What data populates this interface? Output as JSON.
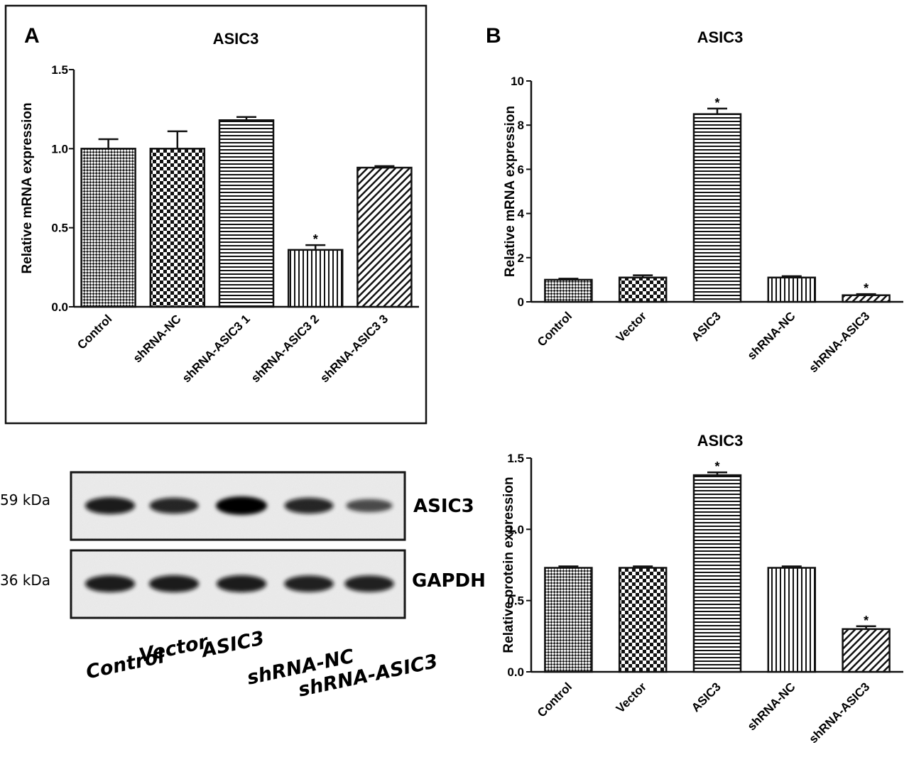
{
  "panel_labels": {
    "a": "A",
    "b": "B"
  },
  "chart_data": [
    {
      "type": "bar",
      "title": "ASIC3",
      "ylabel": "Relative mRNA expression",
      "xlabel": "",
      "categories": [
        "Control",
        "shRNA-NC",
        "shRNA-ASIC3 1",
        "shRNA-ASIC3 2",
        "shRNA-ASIC3 3"
      ],
      "values": [
        1.0,
        1.0,
        1.18,
        0.36,
        0.88
      ],
      "errors": [
        0.06,
        0.11,
        0.02,
        0.03,
        0.01
      ],
      "significance": [
        "",
        "",
        "",
        "*",
        ""
      ],
      "patterns": [
        "diamond",
        "checker",
        "hlines",
        "vlines",
        "diag"
      ],
      "ylim": [
        0,
        1.5
      ],
      "yticks": [
        0.0,
        0.5,
        1.0,
        1.5
      ],
      "ytick_labels": [
        "0.0",
        "0.5",
        "1.0",
        "1.5"
      ]
    },
    {
      "type": "bar",
      "title": "ASIC3",
      "ylabel": "Relative mRNA expression",
      "xlabel": "",
      "categories": [
        "Control",
        "Vector",
        "ASIC3",
        "shRNA-NC",
        "shRNA-ASIC3"
      ],
      "values": [
        1.0,
        1.1,
        8.5,
        1.1,
        0.3
      ],
      "errors": [
        0.05,
        0.1,
        0.25,
        0.06,
        0.05
      ],
      "significance": [
        "",
        "",
        "*",
        "",
        "*"
      ],
      "patterns": [
        "diamond",
        "checker",
        "hlines",
        "vlines",
        "diag"
      ],
      "ylim": [
        0,
        10
      ],
      "yticks": [
        0,
        2,
        4,
        6,
        8,
        10
      ],
      "ytick_labels": [
        "0",
        "2",
        "4",
        "6",
        "8",
        "10"
      ]
    },
    {
      "type": "bar",
      "title": "ASIC3",
      "ylabel": "Relative protein expression",
      "xlabel": "",
      "categories": [
        "Control",
        "Vector",
        "ASIC3",
        "shRNA-NC",
        "shRNA-ASIC3"
      ],
      "values": [
        0.73,
        0.73,
        1.38,
        0.73,
        0.3
      ],
      "errors": [
        0.01,
        0.01,
        0.02,
        0.01,
        0.02
      ],
      "significance": [
        "",
        "",
        "*",
        "",
        "*"
      ],
      "patterns": [
        "diamond",
        "checker",
        "hlines",
        "vlines",
        "diag"
      ],
      "ylim": [
        0,
        1.5
      ],
      "yticks": [
        0.0,
        0.5,
        1.0,
        1.5
      ],
      "ytick_labels": [
        "0.0",
        "0.5",
        "1.0",
        "1.5"
      ]
    }
  ],
  "western_blot": {
    "rows": [
      {
        "protein": "ASIC3",
        "mw": "59 kDa",
        "band_intensity": [
          0.85,
          0.75,
          1.0,
          0.75,
          0.45
        ]
      },
      {
        "protein": "GAPDH",
        "mw": "36 kDa",
        "band_intensity": [
          0.85,
          0.85,
          0.85,
          0.8,
          0.8
        ]
      }
    ],
    "lanes": [
      "Control",
      "Vector",
      "ASIC3",
      "shRNA-NC",
      "shRNA-ASIC3"
    ]
  }
}
